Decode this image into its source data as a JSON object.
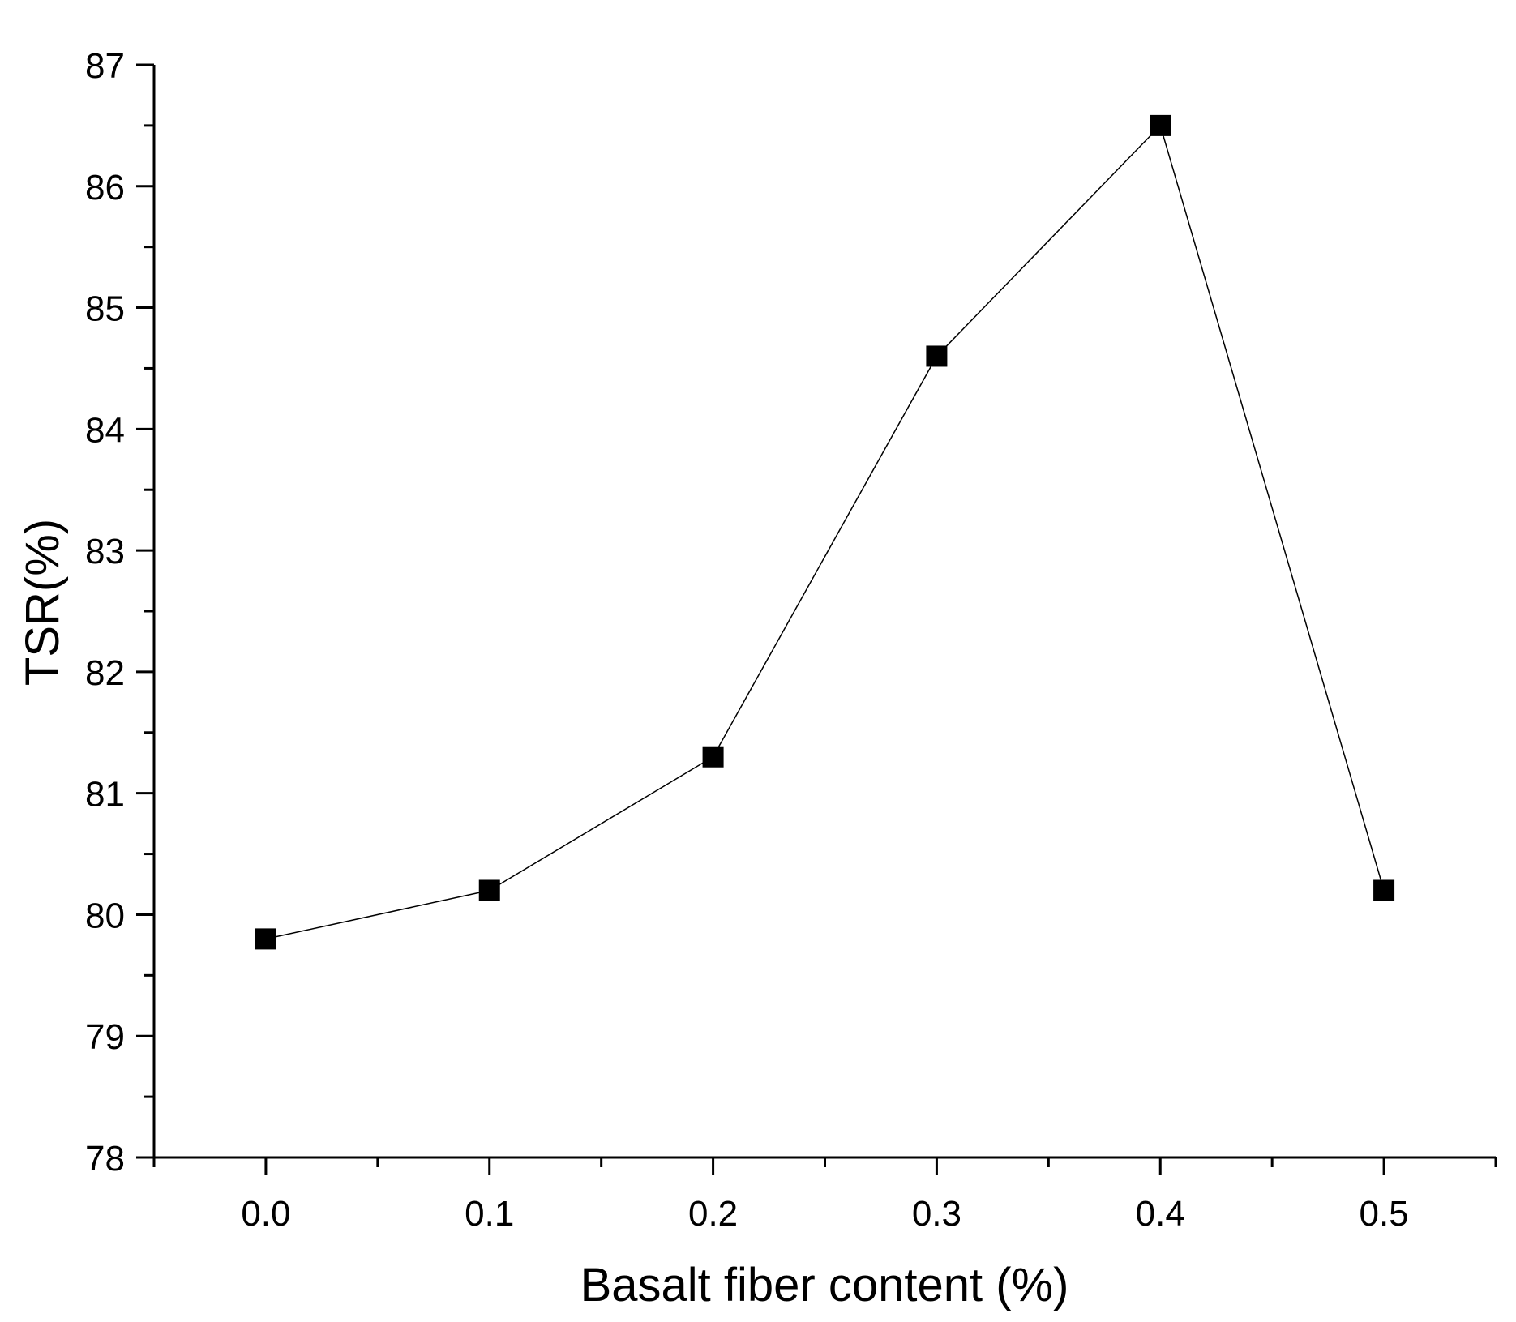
{
  "chart_data": {
    "type": "line",
    "title": "",
    "xlabel": "Basalt fiber content (%)",
    "ylabel": "TSR(%)",
    "x": [
      0.0,
      0.1,
      0.2,
      0.3,
      0.4,
      0.5
    ],
    "x_tick_labels": [
      "0.0",
      "0.1",
      "0.2",
      "0.3",
      "0.4",
      "0.5"
    ],
    "y_tick_labels": [
      "78",
      "79",
      "80",
      "81",
      "82",
      "83",
      "84",
      "85",
      "86",
      "87"
    ],
    "xlim": [
      -0.05,
      0.55
    ],
    "ylim": [
      78,
      87
    ],
    "grid": false,
    "legend": "none",
    "series": [
      {
        "values": [
          79.8,
          80.2,
          81.3,
          84.6,
          86.5,
          80.2
        ],
        "marker": "square",
        "color": "#000000"
      }
    ]
  }
}
